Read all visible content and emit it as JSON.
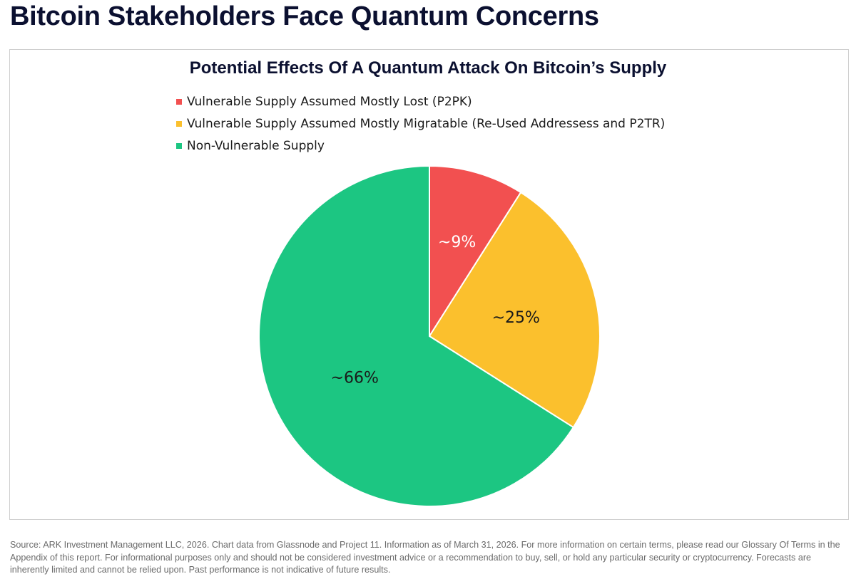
{
  "page": {
    "title": "Bitcoin Stakeholders Face Quantum Concerns",
    "footer": "Source: ARK Investment Management LLC, 2026. Chart data from Glassnode and Project 11. Information as of March 31, 2026. For more information on certain terms, please read our Glossary Of Terms in the Appendix of this report. For informational purposes only and should not be considered investment advice or a recommendation to buy, sell, or hold any particular security or cryptocurrency. Forecasts are inherently limited and cannot be relied upon. Past performance is not indicative of future results."
  },
  "chart_data": {
    "type": "pie",
    "title": "Potential Effects Of A Quantum Attack On Bitcoin’s Supply",
    "legend_placement": "top-left",
    "slices": [
      {
        "name": "Vulnerable Supply Assumed Mostly Lost (P2PK)",
        "value": 9,
        "label": "~9%",
        "color": "#f25050",
        "label_color": "#ffffff"
      },
      {
        "name": "Vulnerable Supply Assumed Mostly Migratable (Re-Used Addressess and P2TR)",
        "value": 25,
        "label": "~25%",
        "color": "#fbc02d",
        "label_color": "#1a1a1a"
      },
      {
        "name": "Non-Vulnerable Supply",
        "value": 66,
        "label": "~66%",
        "color": "#1cc682",
        "label_color": "#1a1a1a"
      }
    ]
  }
}
